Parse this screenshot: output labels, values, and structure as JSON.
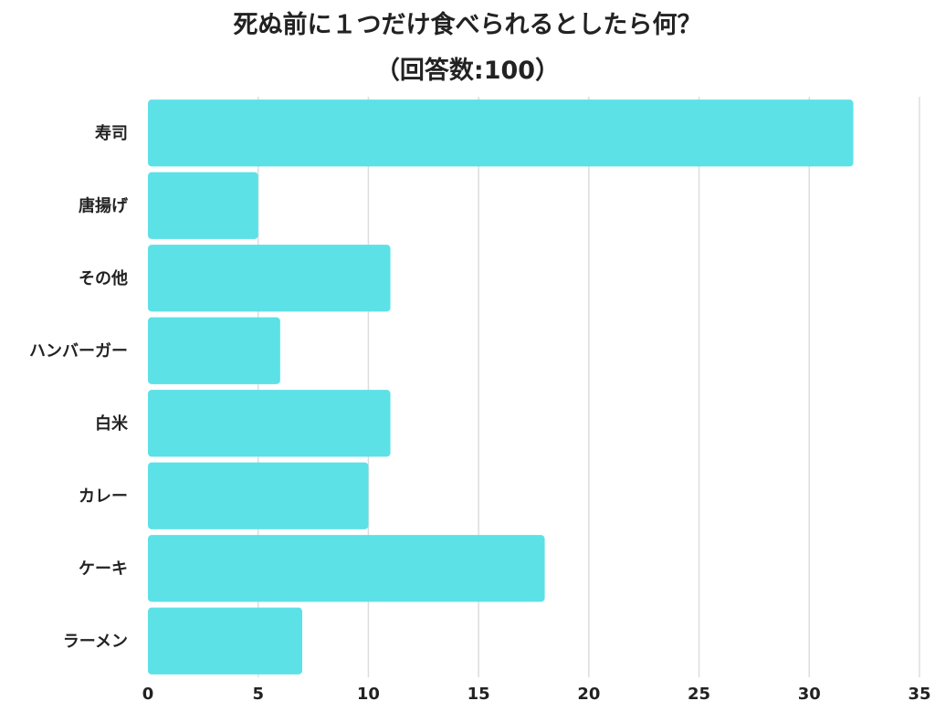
{
  "chart_data": {
    "type": "bar",
    "orientation": "horizontal",
    "title": "死ぬ前に１つだけ食べられるとしたら何？",
    "subtitle": "（回答数:100）",
    "categories": [
      "寿司",
      "唐揚げ",
      "その他",
      "ハンバーガー",
      "白米",
      "カレー",
      "ケーキ",
      "ラーメン"
    ],
    "values": [
      32,
      5,
      11,
      6,
      11,
      10,
      18,
      7
    ],
    "xlim": [
      0,
      35
    ],
    "xticks": [
      "0",
      "5",
      "10",
      "15",
      "20",
      "25",
      "30",
      "35"
    ],
    "grid": true,
    "legend": "none",
    "bar_color": "#5ce1e6"
  }
}
